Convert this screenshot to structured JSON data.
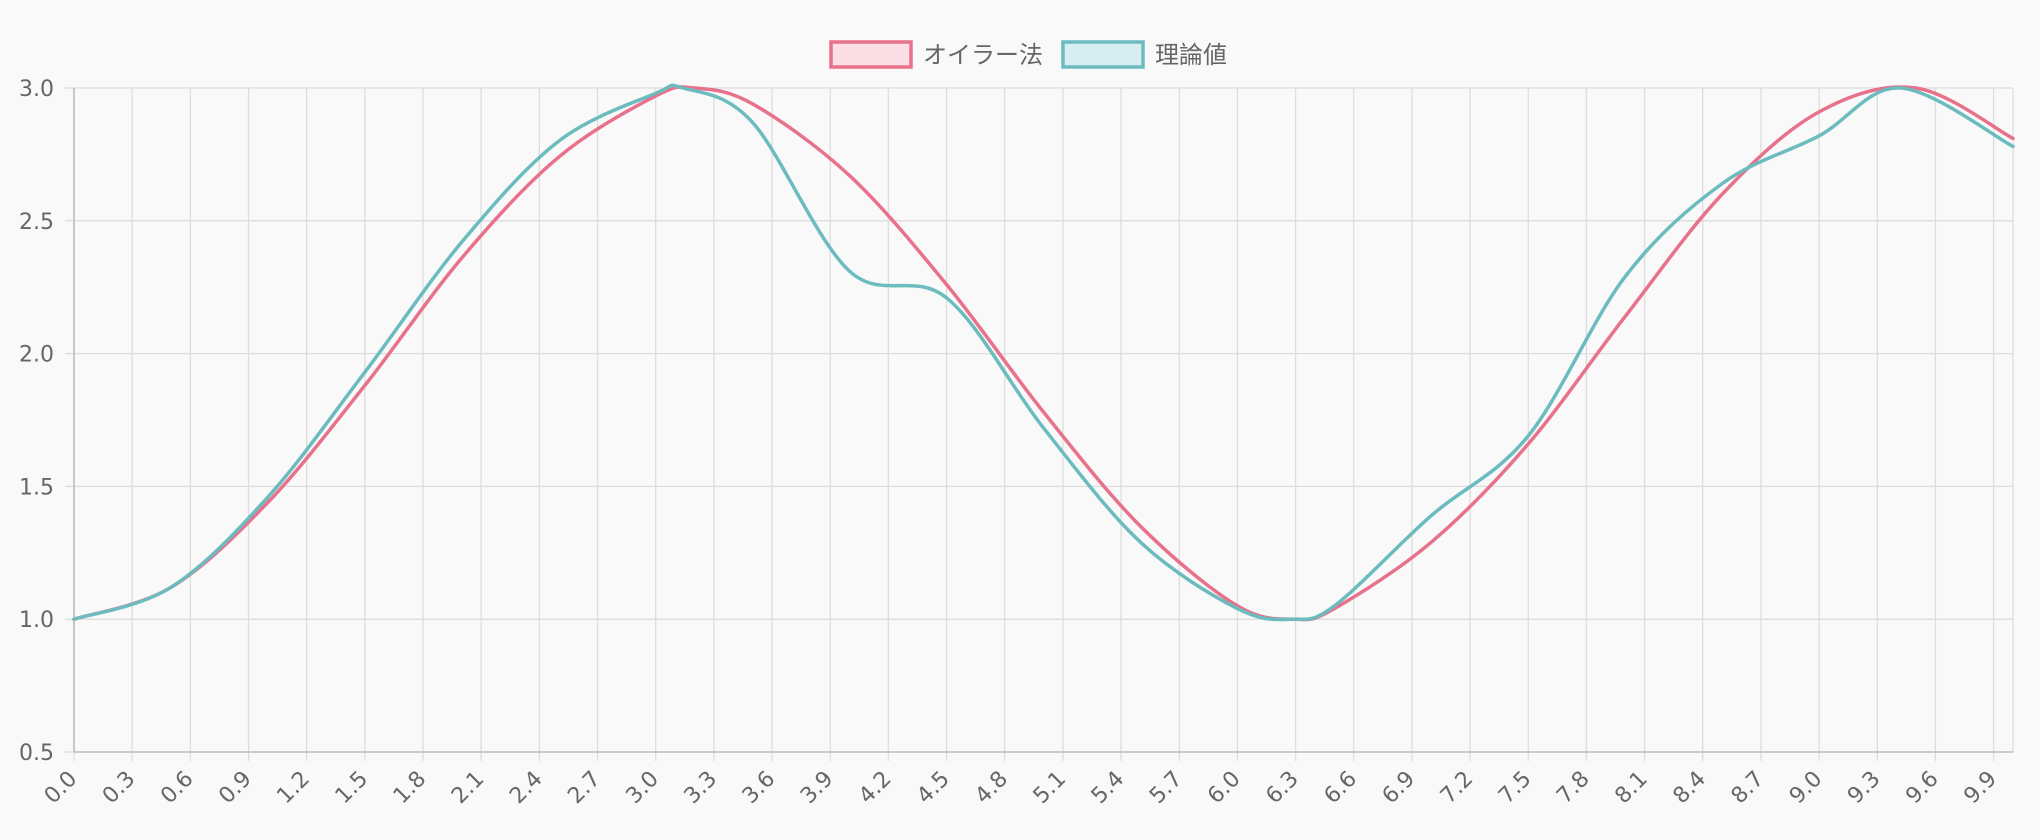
{
  "chart_data": {
    "type": "line",
    "title": "",
    "xlabel": "",
    "ylabel": "",
    "x_tick_labels": [
      "0.0",
      "0.3",
      "0.6",
      "0.9",
      "1.2",
      "1.5",
      "1.8",
      "2.1",
      "2.4",
      "2.7",
      "3.0",
      "3.3",
      "3.6",
      "3.9",
      "4.2",
      "4.5",
      "4.8",
      "5.1",
      "5.4",
      "5.7",
      "6.0",
      "6.3",
      "6.6",
      "6.9",
      "7.2",
      "7.5",
      "7.8",
      "8.1",
      "8.4",
      "8.7",
      "9.0",
      "9.3",
      "9.6",
      "9.9"
    ],
    "x_step": 0.1,
    "xlim": [
      0.0,
      10.0
    ],
    "ylim": [
      0.5,
      3.0
    ],
    "y_ticks": [
      "0.5",
      "1.0",
      "1.5",
      "2.0",
      "2.5",
      "3.0"
    ],
    "grid": true,
    "legend_position": "top",
    "series": [
      {
        "name": "オイラー法",
        "color": "#e8718b",
        "fill": "#fbdfe5",
        "x": [
          0.0,
          0.5,
          1.0,
          1.5,
          2.0,
          2.5,
          3.0,
          3.2,
          3.5,
          4.0,
          4.5,
          5.0,
          5.5,
          6.0,
          6.3,
          6.5,
          7.0,
          7.5,
          8.0,
          8.5,
          9.0,
          9.5,
          10.0
        ],
        "values": [
          1.0,
          1.12,
          1.44,
          1.88,
          2.36,
          2.74,
          2.97,
          3.0,
          2.94,
          2.67,
          2.26,
          1.78,
          1.35,
          1.05,
          1.0,
          1.04,
          1.29,
          1.66,
          2.14,
          2.6,
          2.91,
          3.0,
          2.81
        ]
      },
      {
        "name": "理論値",
        "color": "#6cbcbf",
        "fill": "#d6eeef",
        "x": [
          0.0,
          0.5,
          1.0,
          1.5,
          2.0,
          2.5,
          3.0,
          3.14,
          3.5,
          4.0,
          4.5,
          5.0,
          5.5,
          6.0,
          6.28,
          6.5,
          7.0,
          7.5,
          8.0,
          8.5,
          9.0,
          9.42,
          10.0
        ],
        "values": [
          1.0,
          1.12,
          1.46,
          1.93,
          2.42,
          2.8,
          2.98,
          3.0,
          2.87,
          2.31,
          2.21,
          1.72,
          1.29,
          1.04,
          1.0,
          1.05,
          1.39,
          1.69,
          2.29,
          2.64,
          2.82,
          3.0,
          2.78
        ]
      }
    ]
  }
}
